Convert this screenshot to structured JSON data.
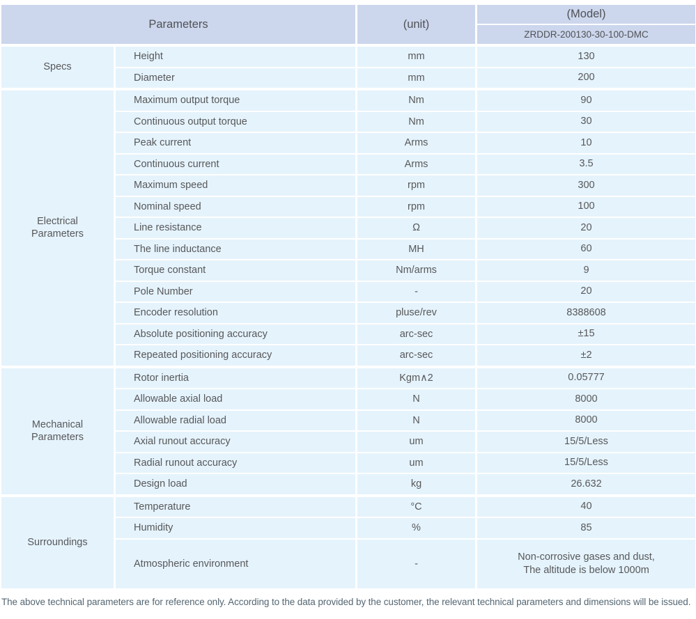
{
  "header": {
    "parameters_label": "Parameters",
    "unit_label": "(unit)",
    "model_label": "(Model)",
    "model_value": "ZRDDR-200130-30-100-DMC"
  },
  "colors": {
    "header_bg": "#ccd6ec",
    "row_bg": "#e5f3fc",
    "text": "#57585a",
    "footnote_text": "#546672"
  },
  "sections": [
    {
      "label": "Specs",
      "rows": [
        {
          "param": "Height",
          "unit": "mm",
          "value": "130"
        },
        {
          "param": "Diameter",
          "unit": "mm",
          "value": "200"
        }
      ]
    },
    {
      "label": "Electrical\nParameters",
      "rows": [
        {
          "param": "Maximum output torque",
          "unit": "Nm",
          "value": "90"
        },
        {
          "param": "Continuous output torque",
          "unit": "Nm",
          "value": "30"
        },
        {
          "param": "Peak current",
          "unit": "Arms",
          "value": "10"
        },
        {
          "param": "Continuous current",
          "unit": "Arms",
          "value": "3.5"
        },
        {
          "param": "Maximum speed",
          "unit": "rpm",
          "value": "300"
        },
        {
          "param": "Nominal speed",
          "unit": "rpm",
          "value": "100"
        },
        {
          "param": "Line resistance",
          "unit": "Ω",
          "value": "20"
        },
        {
          "param": "The line inductance",
          "unit": "MH",
          "value": "60"
        },
        {
          "param": "Torque constant",
          "unit": "Nm/arms",
          "value": "9"
        },
        {
          "param": "Pole Number",
          "unit": "-",
          "value": "20"
        },
        {
          "param": "Encoder resolution",
          "unit": "pluse/rev",
          "value": "8388608"
        },
        {
          "param": "Absolute positioning accuracy",
          "unit": "arc-sec",
          "value": "±15"
        },
        {
          "param": "Repeated positioning accuracy",
          "unit": "arc-sec",
          "value": "±2"
        }
      ]
    },
    {
      "label": "Mechanical\nParameters",
      "rows": [
        {
          "param": "Rotor inertia",
          "unit": "Kgm∧2",
          "value": "0.05777"
        },
        {
          "param": "Allowable axial load",
          "unit": "N",
          "value": "8000"
        },
        {
          "param": "Allowable radial load",
          "unit": "N",
          "value": "8000"
        },
        {
          "param": "Axial runout accuracy",
          "unit": "um",
          "value": "15/5/Less"
        },
        {
          "param": "Radial runout accuracy",
          "unit": "um",
          "value": "15/5/Less"
        },
        {
          "param": "Design load",
          "unit": "kg",
          "value": "26.632"
        }
      ]
    },
    {
      "label": "Surroundings",
      "rows": [
        {
          "param": "Temperature",
          "unit": "°C",
          "value": "40"
        },
        {
          "param": "Humidity",
          "unit": "%",
          "value": "85"
        },
        {
          "param": "Atmospheric environment",
          "unit": "-",
          "value": "Non-corrosive gases and dust,\nThe altitude is below 1000m",
          "tall": true
        }
      ]
    }
  ],
  "footer": {
    "note": "The above technical parameters are for reference only. According to the data provided by the customer, the relevant technical parameters and dimensions will be issued."
  }
}
